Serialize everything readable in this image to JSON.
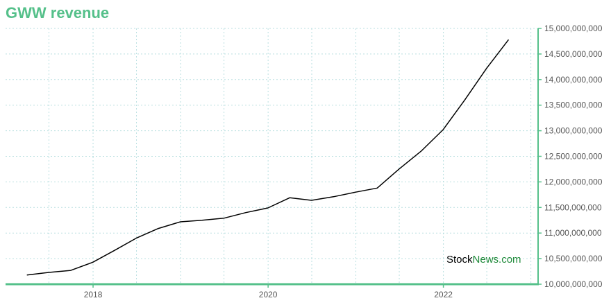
{
  "chart_data": {
    "type": "line",
    "title": "GWW revenue",
    "xlabel": "",
    "ylabel": "",
    "x_ticks": [
      "2018",
      "2020",
      "2022"
    ],
    "y_ticks": [
      "10,000,000,000",
      "10,500,000,000",
      "11,000,000,000",
      "11,500,000,000",
      "12,000,000,000",
      "12,500,000,000",
      "13,000,000,000",
      "13,500,000,000",
      "14,000,000,000",
      "14,500,000,000",
      "15,000,000,000"
    ],
    "ylim": [
      10000000000,
      15000000000
    ],
    "xlim": [
      "2017-01-01",
      "2023-01-31"
    ],
    "grid": true,
    "series": [
      {
        "x": [
          "2017-03-31",
          "2017-06-30",
          "2017-09-30",
          "2017-12-31",
          "2018-03-31",
          "2018-06-30",
          "2018-09-30",
          "2018-12-31",
          "2019-03-31",
          "2019-06-30",
          "2019-09-30",
          "2019-12-31",
          "2020-03-31",
          "2020-06-30",
          "2020-09-30",
          "2020-12-31",
          "2021-03-31",
          "2021-06-30",
          "2021-09-30",
          "2021-12-31",
          "2022-03-31",
          "2022-06-30",
          "2022-09-30"
        ],
        "values": [
          10180000000,
          10230000000,
          10270000000,
          10430000000,
          10660000000,
          10900000000,
          11090000000,
          11220000000,
          11250000000,
          11290000000,
          11400000000,
          11490000000,
          11690000000,
          11640000000,
          11710000000,
          11800000000,
          11880000000,
          12250000000,
          12600000000,
          13020000000,
          13600000000,
          14220000000,
          14780000000
        ]
      }
    ]
  },
  "colors": {
    "title": "#55c08a",
    "axis": "#55c08a",
    "line": "#000000",
    "grid": "#b9dfe0",
    "watermark_stock": "#000000",
    "watermark_news": "#1f8a3a"
  },
  "watermark": {
    "stock": "Stock",
    "news": "News",
    "com": ".com"
  }
}
